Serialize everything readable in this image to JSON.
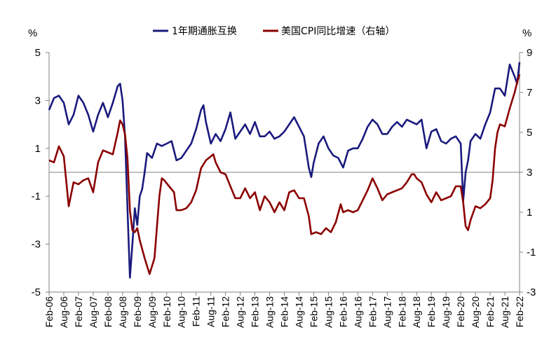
{
  "chart_data": {
    "type": "line",
    "title": "",
    "left_unit": "%",
    "right_unit": "%",
    "y_left": {
      "min": -5,
      "max": 5,
      "ticks": [
        5,
        3,
        1,
        -1,
        -3,
        -5
      ]
    },
    "y_right": {
      "min": -3,
      "max": 9,
      "ticks": [
        9,
        7,
        5,
        3,
        1,
        -1,
        -3
      ]
    },
    "x_labels": [
      "Feb-06",
      "Aug-06",
      "Feb-07",
      "Aug-07",
      "Feb-08",
      "Aug-08",
      "Feb-09",
      "Aug-09",
      "Feb-10",
      "Aug-10",
      "Feb-11",
      "Aug-11",
      "Feb-12",
      "Aug-12",
      "Feb-13",
      "Aug-13",
      "Feb-14",
      "Aug-14",
      "Feb-15",
      "Aug-15",
      "Feb-16",
      "Aug-16",
      "Feb-17",
      "Aug-17",
      "Feb-18",
      "Aug-18",
      "Feb-19",
      "Aug-19",
      "Feb-20",
      "Aug-20",
      "Feb-21",
      "Aug-21",
      "Feb-22"
    ],
    "legend_position": "top-center",
    "grid": false,
    "series": [
      {
        "name": "1年期通胀互换",
        "axis": "left",
        "color": "#1a1a7e",
        "points": [
          [
            "2006-02",
            2.6
          ],
          [
            "2006-04",
            3.1
          ],
          [
            "2006-06",
            3.2
          ],
          [
            "2006-08",
            2.9
          ],
          [
            "2006-10",
            2.0
          ],
          [
            "2006-12",
            2.4
          ],
          [
            "2007-02",
            3.2
          ],
          [
            "2007-04",
            2.9
          ],
          [
            "2007-06",
            2.4
          ],
          [
            "2007-08",
            1.7
          ],
          [
            "2007-10",
            2.4
          ],
          [
            "2007-12",
            2.9
          ],
          [
            "2008-02",
            2.3
          ],
          [
            "2008-04",
            2.9
          ],
          [
            "2008-06",
            3.6
          ],
          [
            "2008-07",
            3.7
          ],
          [
            "2008-08",
            3.0
          ],
          [
            "2008-09",
            1.5
          ],
          [
            "2008-10",
            -1.5
          ],
          [
            "2008-11",
            -4.4
          ],
          [
            "2008-12",
            -3.0
          ],
          [
            "2009-01",
            -1.5
          ],
          [
            "2009-02",
            -2.2
          ],
          [
            "2009-03",
            -1.0
          ],
          [
            "2009-04",
            -0.7
          ],
          [
            "2009-05",
            0.0
          ],
          [
            "2009-06",
            0.8
          ],
          [
            "2009-08",
            0.6
          ],
          [
            "2009-10",
            1.2
          ],
          [
            "2009-12",
            1.1
          ],
          [
            "2010-02",
            1.2
          ],
          [
            "2010-04",
            1.3
          ],
          [
            "2010-06",
            0.5
          ],
          [
            "2010-08",
            0.6
          ],
          [
            "2010-10",
            0.9
          ],
          [
            "2010-12",
            1.2
          ],
          [
            "2011-02",
            1.8
          ],
          [
            "2011-04",
            2.6
          ],
          [
            "2011-05",
            2.8
          ],
          [
            "2011-06",
            2.1
          ],
          [
            "2011-08",
            1.2
          ],
          [
            "2011-10",
            1.6
          ],
          [
            "2011-12",
            1.3
          ],
          [
            "2012-02",
            1.8
          ],
          [
            "2012-04",
            2.5
          ],
          [
            "2012-06",
            1.4
          ],
          [
            "2012-08",
            1.7
          ],
          [
            "2012-10",
            2.0
          ],
          [
            "2012-12",
            1.6
          ],
          [
            "2013-02",
            2.1
          ],
          [
            "2013-04",
            1.5
          ],
          [
            "2013-06",
            1.5
          ],
          [
            "2013-08",
            1.7
          ],
          [
            "2013-10",
            1.4
          ],
          [
            "2013-12",
            1.5
          ],
          [
            "2014-02",
            1.7
          ],
          [
            "2014-04",
            2.0
          ],
          [
            "2014-06",
            2.3
          ],
          [
            "2014-08",
            1.9
          ],
          [
            "2014-10",
            1.5
          ],
          [
            "2014-12",
            0.2
          ],
          [
            "2015-01",
            -0.2
          ],
          [
            "2015-02",
            0.4
          ],
          [
            "2015-04",
            1.2
          ],
          [
            "2015-06",
            1.5
          ],
          [
            "2015-08",
            1.0
          ],
          [
            "2015-10",
            0.7
          ],
          [
            "2015-12",
            0.6
          ],
          [
            "2016-02",
            0.2
          ],
          [
            "2016-04",
            0.9
          ],
          [
            "2016-06",
            1.0
          ],
          [
            "2016-08",
            1.0
          ],
          [
            "2016-10",
            1.4
          ],
          [
            "2016-12",
            1.9
          ],
          [
            "2017-02",
            2.2
          ],
          [
            "2017-04",
            2.0
          ],
          [
            "2017-06",
            1.6
          ],
          [
            "2017-08",
            1.6
          ],
          [
            "2017-10",
            1.9
          ],
          [
            "2017-12",
            2.1
          ],
          [
            "2018-02",
            1.9
          ],
          [
            "2018-04",
            2.2
          ],
          [
            "2018-06",
            2.1
          ],
          [
            "2018-08",
            2.0
          ],
          [
            "2018-10",
            2.2
          ],
          [
            "2018-12",
            1.0
          ],
          [
            "2019-02",
            1.7
          ],
          [
            "2019-04",
            1.8
          ],
          [
            "2019-06",
            1.3
          ],
          [
            "2019-08",
            1.2
          ],
          [
            "2019-10",
            1.4
          ],
          [
            "2019-12",
            1.5
          ],
          [
            "2020-02",
            1.2
          ],
          [
            "2020-03",
            -1.2
          ],
          [
            "2020-04",
            0.0
          ],
          [
            "2020-05",
            0.5
          ],
          [
            "2020-06",
            1.3
          ],
          [
            "2020-08",
            1.6
          ],
          [
            "2020-10",
            1.4
          ],
          [
            "2020-12",
            2.0
          ],
          [
            "2021-02",
            2.5
          ],
          [
            "2021-04",
            3.5
          ],
          [
            "2021-06",
            3.5
          ],
          [
            "2021-08",
            3.2
          ],
          [
            "2021-10",
            4.5
          ],
          [
            "2021-12",
            4.0
          ],
          [
            "2022-01",
            3.7
          ],
          [
            "2022-02",
            4.6
          ]
        ]
      },
      {
        "name": "美国CPI同比增速（右轴）",
        "axis": "right",
        "color": "#8b0000",
        "points": [
          [
            "2006-02",
            3.6
          ],
          [
            "2006-04",
            3.5
          ],
          [
            "2006-06",
            4.3
          ],
          [
            "2006-08",
            3.8
          ],
          [
            "2006-10",
            1.3
          ],
          [
            "2006-12",
            2.5
          ],
          [
            "2007-02",
            2.4
          ],
          [
            "2007-04",
            2.6
          ],
          [
            "2007-06",
            2.7
          ],
          [
            "2007-08",
            2.0
          ],
          [
            "2007-10",
            3.5
          ],
          [
            "2007-12",
            4.1
          ],
          [
            "2008-02",
            4.0
          ],
          [
            "2008-04",
            3.9
          ],
          [
            "2008-06",
            5.0
          ],
          [
            "2008-07",
            5.6
          ],
          [
            "2008-08",
            5.4
          ],
          [
            "2008-09",
            4.9
          ],
          [
            "2008-10",
            3.7
          ],
          [
            "2008-11",
            1.1
          ],
          [
            "2008-12",
            0.1
          ],
          [
            "2009-01",
            0.0
          ],
          [
            "2009-02",
            0.2
          ],
          [
            "2009-03",
            -0.4
          ],
          [
            "2009-05",
            -1.3
          ],
          [
            "2009-07",
            -2.1
          ],
          [
            "2009-09",
            -1.3
          ],
          [
            "2009-11",
            1.8
          ],
          [
            "2009-12",
            2.7
          ],
          [
            "2010-01",
            2.6
          ],
          [
            "2010-03",
            2.3
          ],
          [
            "2010-05",
            2.0
          ],
          [
            "2010-06",
            1.1
          ],
          [
            "2010-08",
            1.1
          ],
          [
            "2010-10",
            1.2
          ],
          [
            "2010-12",
            1.5
          ],
          [
            "2011-02",
            2.1
          ],
          [
            "2011-04",
            3.2
          ],
          [
            "2011-06",
            3.6
          ],
          [
            "2011-08",
            3.8
          ],
          [
            "2011-09",
            3.9
          ],
          [
            "2011-10",
            3.5
          ],
          [
            "2011-12",
            3.0
          ],
          [
            "2012-02",
            2.9
          ],
          [
            "2012-04",
            2.3
          ],
          [
            "2012-06",
            1.7
          ],
          [
            "2012-08",
            1.7
          ],
          [
            "2012-10",
            2.2
          ],
          [
            "2012-12",
            1.7
          ],
          [
            "2013-02",
            2.0
          ],
          [
            "2013-04",
            1.1
          ],
          [
            "2013-06",
            1.8
          ],
          [
            "2013-08",
            1.5
          ],
          [
            "2013-10",
            1.0
          ],
          [
            "2013-12",
            1.5
          ],
          [
            "2014-02",
            1.1
          ],
          [
            "2014-04",
            2.0
          ],
          [
            "2014-06",
            2.1
          ],
          [
            "2014-08",
            1.7
          ],
          [
            "2014-10",
            1.7
          ],
          [
            "2014-12",
            0.8
          ],
          [
            "2015-01",
            -0.1
          ],
          [
            "2015-03",
            0.0
          ],
          [
            "2015-05",
            -0.1
          ],
          [
            "2015-07",
            0.2
          ],
          [
            "2015-09",
            0.0
          ],
          [
            "2015-11",
            0.5
          ],
          [
            "2016-01",
            1.4
          ],
          [
            "2016-02",
            1.0
          ],
          [
            "2016-04",
            1.1
          ],
          [
            "2016-06",
            1.0
          ],
          [
            "2016-08",
            1.1
          ],
          [
            "2016-10",
            1.6
          ],
          [
            "2016-12",
            2.1
          ],
          [
            "2017-02",
            2.7
          ],
          [
            "2017-04",
            2.2
          ],
          [
            "2017-06",
            1.6
          ],
          [
            "2017-08",
            1.9
          ],
          [
            "2017-10",
            2.0
          ],
          [
            "2017-12",
            2.1
          ],
          [
            "2018-02",
            2.2
          ],
          [
            "2018-04",
            2.5
          ],
          [
            "2018-06",
            2.9
          ],
          [
            "2018-07",
            2.9
          ],
          [
            "2018-08",
            2.7
          ],
          [
            "2018-10",
            2.5
          ],
          [
            "2018-12",
            1.9
          ],
          [
            "2019-02",
            1.5
          ],
          [
            "2019-04",
            2.0
          ],
          [
            "2019-06",
            1.6
          ],
          [
            "2019-08",
            1.7
          ],
          [
            "2019-10",
            1.8
          ],
          [
            "2019-12",
            2.3
          ],
          [
            "2020-02",
            2.3
          ],
          [
            "2020-03",
            1.5
          ],
          [
            "2020-04",
            0.3
          ],
          [
            "2020-05",
            0.1
          ],
          [
            "2020-06",
            0.6
          ],
          [
            "2020-08",
            1.3
          ],
          [
            "2020-10",
            1.2
          ],
          [
            "2020-12",
            1.4
          ],
          [
            "2021-02",
            1.7
          ],
          [
            "2021-03",
            2.6
          ],
          [
            "2021-04",
            4.2
          ],
          [
            "2021-05",
            5.0
          ],
          [
            "2021-06",
            5.4
          ],
          [
            "2021-08",
            5.3
          ],
          [
            "2021-10",
            6.2
          ],
          [
            "2021-12",
            7.0
          ],
          [
            "2022-01",
            7.5
          ],
          [
            "2022-02",
            7.9
          ]
        ]
      }
    ]
  }
}
